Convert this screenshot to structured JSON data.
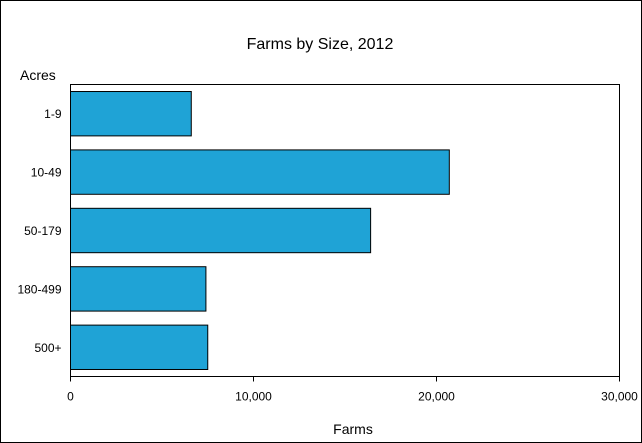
{
  "chart_data": {
    "type": "bar",
    "orientation": "horizontal",
    "title": "Farms by Size, 2012",
    "xlabel": "Farms",
    "ylabel": "Acres",
    "categories": [
      "1-9",
      "10-49",
      "50-179",
      "180-499",
      "500+"
    ],
    "values": [
      6600,
      20700,
      16400,
      7400,
      7500
    ],
    "xlim": [
      0,
      30000
    ],
    "xticks": [
      0,
      10000,
      20000,
      30000
    ],
    "xtick_labels": [
      "0",
      "10,000",
      "20,000",
      "30,000"
    ],
    "grid": false,
    "legend": "none",
    "bar_color": "#1fa3d6",
    "bar_edge_color": "#000000"
  }
}
